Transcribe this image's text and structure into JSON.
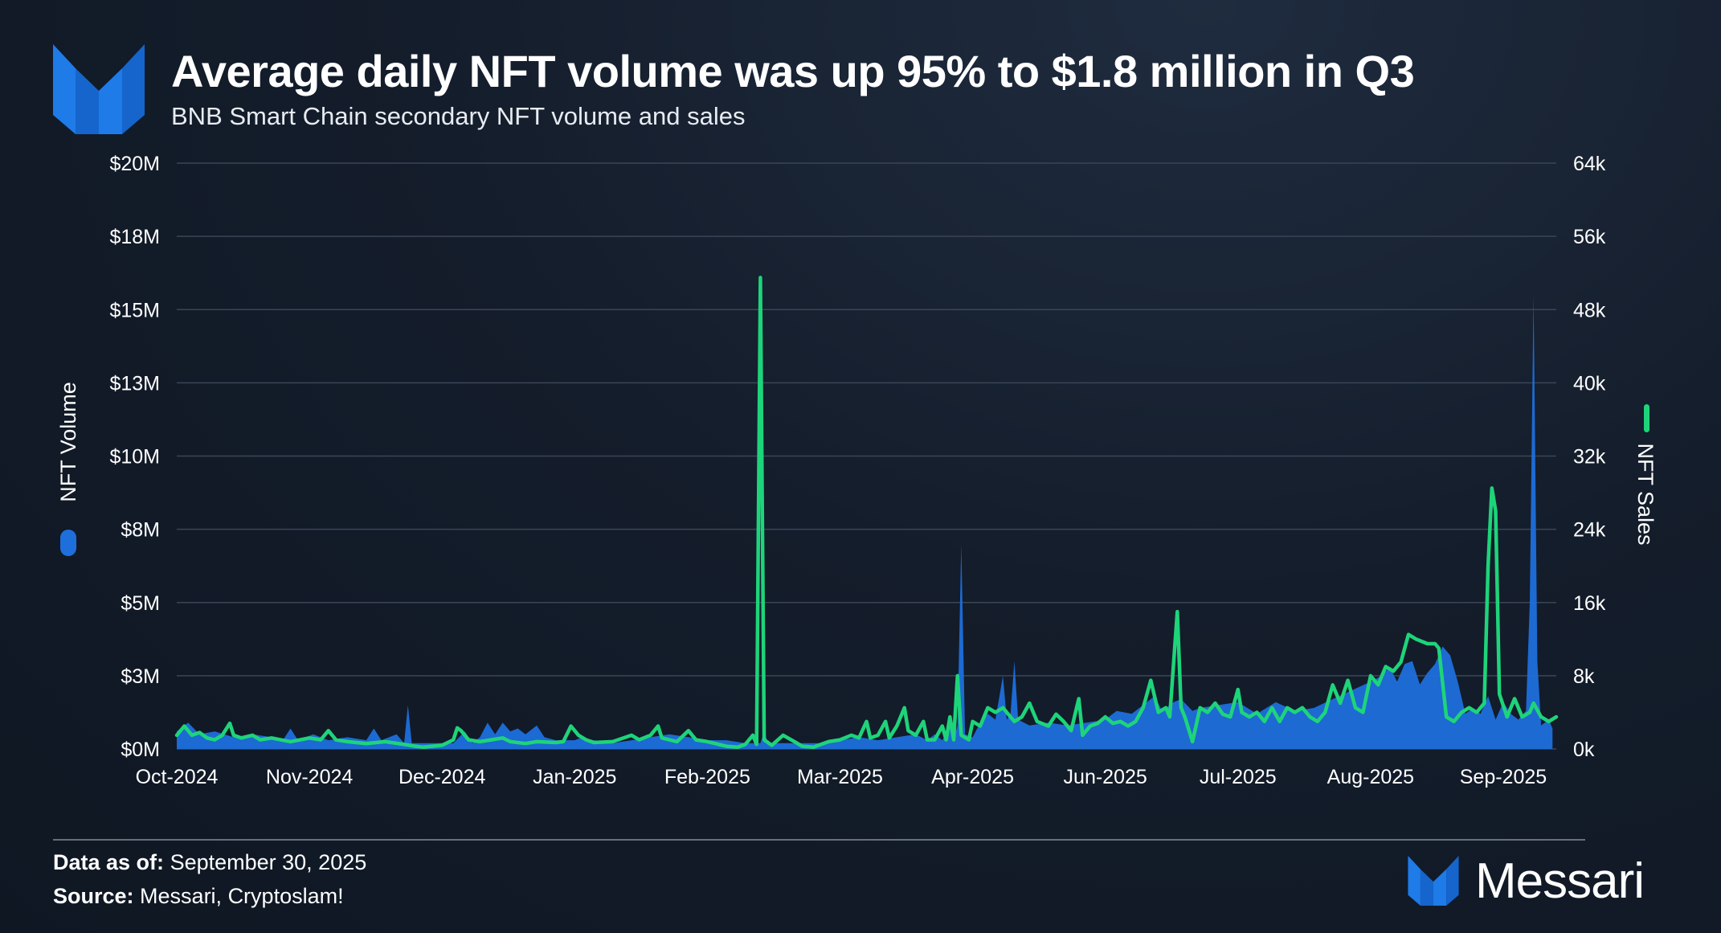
{
  "header": {
    "title": "Average daily NFT volume was up 95% to $1.8 million in Q3",
    "subtitle": "BNB Smart Chain secondary NFT volume and sales"
  },
  "footer": {
    "data_as_of_label": "Data as of:",
    "data_as_of_value": "September 30, 2025",
    "source_label": "Source:",
    "source_value": "Messari, Cryptoslam!",
    "brand": "Messari"
  },
  "colors": {
    "volume": "#1e6fdc",
    "sales": "#1ed47a",
    "grid": "#3a4556"
  },
  "chart_data": {
    "type": "area+line",
    "title": "Average daily NFT volume was up 95% to $1.8 million in Q3",
    "subtitle": "BNB Smart Chain secondary NFT volume and sales",
    "x_tick_labels": [
      "Oct-2024",
      "Nov-2024",
      "Dec-2024",
      "Jan-2025",
      "Feb-2025",
      "Mar-2025",
      "Apr-2025",
      "Jun-2025",
      "Jul-2025",
      "Aug-2025",
      "Sep-2025"
    ],
    "x_domain_days": [
      0,
      364
    ],
    "x_tick_days": [
      0,
      35,
      70,
      105,
      140,
      175,
      210,
      245,
      280,
      315,
      350
    ],
    "y_left": {
      "label": "NFT Volume",
      "range": [
        0,
        20
      ],
      "tick_values": [
        0,
        2.5,
        5,
        7.5,
        10,
        12.5,
        15,
        17.5,
        20
      ],
      "tick_labels": [
        "$0M",
        "$3M",
        "$5M",
        "$8M",
        "$10M",
        "$13M",
        "$15M",
        "$18M",
        "$20M"
      ]
    },
    "y_right": {
      "label": "NFT Sales",
      "range": [
        0,
        64
      ],
      "tick_values": [
        0,
        8,
        16,
        24,
        32,
        40,
        48,
        56,
        64
      ],
      "tick_labels": [
        "0k",
        "8k",
        "16k",
        "24k",
        "32k",
        "40k",
        "48k",
        "56k",
        "64k"
      ]
    },
    "series": [
      {
        "name": "NFT Volume",
        "unit": "$M",
        "axis": "left",
        "style": "area",
        "points": [
          [
            0,
            0.6
          ],
          [
            3,
            0.9
          ],
          [
            6,
            0.5
          ],
          [
            10,
            0.6
          ],
          [
            15,
            0.4
          ],
          [
            20,
            0.5
          ],
          [
            25,
            0.4
          ],
          [
            28,
            0.3
          ],
          [
            30,
            0.7
          ],
          [
            32,
            0.3
          ],
          [
            36,
            0.5
          ],
          [
            40,
            0.3
          ],
          [
            45,
            0.4
          ],
          [
            50,
            0.3
          ],
          [
            52,
            0.7
          ],
          [
            54,
            0.3
          ],
          [
            58,
            0.5
          ],
          [
            60,
            0.2
          ],
          [
            61,
            1.5
          ],
          [
            62,
            0.2
          ],
          [
            65,
            0.2
          ],
          [
            70,
            0.2
          ],
          [
            73,
            0.2
          ],
          [
            76,
            0.6
          ],
          [
            78,
            0.2
          ],
          [
            80,
            0.4
          ],
          [
            82,
            0.9
          ],
          [
            84,
            0.5
          ],
          [
            86,
            0.9
          ],
          [
            88,
            0.6
          ],
          [
            90,
            0.7
          ],
          [
            92,
            0.5
          ],
          [
            95,
            0.8
          ],
          [
            97,
            0.4
          ],
          [
            100,
            0.3
          ],
          [
            105,
            0.3
          ],
          [
            107,
            0.4
          ],
          [
            110,
            0.3
          ],
          [
            115,
            0.2
          ],
          [
            120,
            0.3
          ],
          [
            125,
            0.4
          ],
          [
            130,
            0.5
          ],
          [
            135,
            0.4
          ],
          [
            140,
            0.3
          ],
          [
            145,
            0.3
          ],
          [
            150,
            0.2
          ],
          [
            154,
            0.2
          ],
          [
            155,
            0.6
          ],
          [
            156,
            0.2
          ],
          [
            160,
            0.2
          ],
          [
            165,
            0.2
          ],
          [
            170,
            0.2
          ],
          [
            175,
            0.3
          ],
          [
            180,
            0.4
          ],
          [
            185,
            0.3
          ],
          [
            190,
            0.4
          ],
          [
            195,
            0.5
          ],
          [
            198,
            0.3
          ],
          [
            200,
            0.5
          ],
          [
            202,
            0.3
          ],
          [
            204,
            0.8
          ],
          [
            205,
            0.3
          ],
          [
            206,
            0.8
          ],
          [
            207,
            7.0
          ],
          [
            208,
            0.5
          ],
          [
            210,
            0.4
          ],
          [
            212,
            0.9
          ],
          [
            214,
            1.2
          ],
          [
            216,
            1.0
          ],
          [
            218,
            2.5
          ],
          [
            219,
            1.0
          ],
          [
            220,
            1.2
          ],
          [
            221,
            3.0
          ],
          [
            222,
            1.0
          ],
          [
            225,
            0.8
          ],
          [
            230,
            0.9
          ],
          [
            235,
            0.8
          ],
          [
            240,
            0.9
          ],
          [
            245,
            1.0
          ],
          [
            248,
            1.3
          ],
          [
            252,
            1.2
          ],
          [
            255,
            1.5
          ],
          [
            258,
            1.8
          ],
          [
            260,
            1.3
          ],
          [
            263,
            1.6
          ],
          [
            265,
            1.7
          ],
          [
            268,
            1.3
          ],
          [
            270,
            1.4
          ],
          [
            275,
            1.5
          ],
          [
            280,
            1.6
          ],
          [
            285,
            1.2
          ],
          [
            290,
            1.6
          ],
          [
            295,
            1.3
          ],
          [
            300,
            1.4
          ],
          [
            305,
            1.7
          ],
          [
            310,
            2.0
          ],
          [
            315,
            2.3
          ],
          [
            318,
            2.5
          ],
          [
            320,
            2.8
          ],
          [
            322,
            2.3
          ],
          [
            324,
            2.9
          ],
          [
            326,
            3.0
          ],
          [
            328,
            2.2
          ],
          [
            330,
            2.6
          ],
          [
            332,
            2.9
          ],
          [
            334,
            3.5
          ],
          [
            336,
            3.2
          ],
          [
            338,
            2.3
          ],
          [
            340,
            1.2
          ],
          [
            342,
            1.4
          ],
          [
            344,
            1.2
          ],
          [
            346,
            1.8
          ],
          [
            348,
            1.0
          ],
          [
            350,
            1.6
          ],
          [
            352,
            1.2
          ],
          [
            354,
            1.0
          ],
          [
            356,
            1.3
          ],
          [
            357,
            5.0
          ],
          [
            358,
            15.5
          ],
          [
            359,
            3.0
          ],
          [
            360,
            0.8
          ],
          [
            362,
            1.0
          ],
          [
            363,
            0.7
          ]
        ]
      },
      {
        "name": "NFT Sales",
        "unit": "k",
        "axis": "right",
        "style": "line",
        "points": [
          [
            0,
            1.5
          ],
          [
            2,
            2.5
          ],
          [
            4,
            1.5
          ],
          [
            6,
            1.8
          ],
          [
            8,
            1.2
          ],
          [
            10,
            1.0
          ],
          [
            12,
            1.5
          ],
          [
            14,
            2.8
          ],
          [
            15,
            1.5
          ],
          [
            17,
            1.2
          ],
          [
            20,
            1.5
          ],
          [
            22,
            1.0
          ],
          [
            25,
            1.2
          ],
          [
            30,
            0.8
          ],
          [
            35,
            1.2
          ],
          [
            38,
            1.0
          ],
          [
            40,
            2.0
          ],
          [
            42,
            1.0
          ],
          [
            45,
            0.8
          ],
          [
            50,
            0.6
          ],
          [
            55,
            0.8
          ],
          [
            60,
            0.5
          ],
          [
            63,
            0.3
          ],
          [
            65,
            0.2
          ],
          [
            70,
            0.4
          ],
          [
            73,
            1.0
          ],
          [
            74,
            2.3
          ],
          [
            75,
            2.0
          ],
          [
            77,
            1.0
          ],
          [
            80,
            0.8
          ],
          [
            83,
            1.0
          ],
          [
            86,
            1.2
          ],
          [
            88,
            0.8
          ],
          [
            92,
            0.6
          ],
          [
            95,
            0.8
          ],
          [
            100,
            0.7
          ],
          [
            102,
            0.8
          ],
          [
            104,
            2.5
          ],
          [
            106,
            1.5
          ],
          [
            108,
            1.0
          ],
          [
            110,
            0.7
          ],
          [
            115,
            0.8
          ],
          [
            120,
            1.5
          ],
          [
            122,
            1.0
          ],
          [
            125,
            1.5
          ],
          [
            127,
            2.5
          ],
          [
            128,
            1.2
          ],
          [
            132,
            0.8
          ],
          [
            135,
            2.0
          ],
          [
            137,
            1.0
          ],
          [
            140,
            0.8
          ],
          [
            143,
            0.5
          ],
          [
            145,
            0.3
          ],
          [
            148,
            0.2
          ],
          [
            150,
            0.5
          ],
          [
            152,
            1.5
          ],
          [
            153,
            0.5
          ],
          [
            154,
            51.5
          ],
          [
            155,
            1.0
          ],
          [
            157,
            0.4
          ],
          [
            160,
            1.5
          ],
          [
            163,
            0.8
          ],
          [
            165,
            0.3
          ],
          [
            168,
            0.2
          ],
          [
            170,
            0.5
          ],
          [
            172,
            0.8
          ],
          [
            175,
            1.0
          ],
          [
            178,
            1.5
          ],
          [
            180,
            1.2
          ],
          [
            182,
            3.0
          ],
          [
            183,
            1.2
          ],
          [
            185,
            1.5
          ],
          [
            187,
            3.0
          ],
          [
            188,
            1.2
          ],
          [
            190,
            2.5
          ],
          [
            192,
            4.5
          ],
          [
            193,
            2.0
          ],
          [
            195,
            1.5
          ],
          [
            197,
            3.0
          ],
          [
            198,
            1.0
          ],
          [
            200,
            1.0
          ],
          [
            202,
            2.5
          ],
          [
            203,
            1.0
          ],
          [
            204,
            3.5
          ],
          [
            205,
            1.0
          ],
          [
            206,
            8.0
          ],
          [
            207,
            1.5
          ],
          [
            209,
            1.0
          ],
          [
            210,
            3.0
          ],
          [
            212,
            2.5
          ],
          [
            214,
            4.5
          ],
          [
            216,
            4.0
          ],
          [
            218,
            4.5
          ],
          [
            220,
            3.5
          ],
          [
            221,
            3.0
          ],
          [
            223,
            3.5
          ],
          [
            225,
            5.0
          ],
          [
            227,
            3.0
          ],
          [
            230,
            2.5
          ],
          [
            232,
            3.8
          ],
          [
            234,
            3.0
          ],
          [
            236,
            2.0
          ],
          [
            238,
            5.5
          ],
          [
            239,
            1.5
          ],
          [
            241,
            2.5
          ],
          [
            243,
            2.8
          ],
          [
            245,
            3.5
          ],
          [
            247,
            2.8
          ],
          [
            249,
            3.0
          ],
          [
            251,
            2.5
          ],
          [
            253,
            3.0
          ],
          [
            255,
            4.5
          ],
          [
            257,
            7.5
          ],
          [
            259,
            4.0
          ],
          [
            261,
            4.5
          ],
          [
            262,
            3.5
          ],
          [
            264,
            15.0
          ],
          [
            265,
            4.5
          ],
          [
            266,
            3.5
          ],
          [
            268,
            0.8
          ],
          [
            270,
            4.5
          ],
          [
            272,
            4.0
          ],
          [
            274,
            5.0
          ],
          [
            276,
            3.8
          ],
          [
            278,
            3.5
          ],
          [
            280,
            6.5
          ],
          [
            281,
            4.0
          ],
          [
            283,
            3.5
          ],
          [
            285,
            4.0
          ],
          [
            287,
            3.0
          ],
          [
            289,
            4.5
          ],
          [
            291,
            3.0
          ],
          [
            293,
            4.5
          ],
          [
            295,
            4.0
          ],
          [
            297,
            4.5
          ],
          [
            299,
            3.5
          ],
          [
            301,
            3.0
          ],
          [
            303,
            4.0
          ],
          [
            305,
            7.0
          ],
          [
            307,
            5.0
          ],
          [
            309,
            7.5
          ],
          [
            311,
            4.5
          ],
          [
            313,
            4.0
          ],
          [
            315,
            8.0
          ],
          [
            317,
            7.0
          ],
          [
            319,
            9.0
          ],
          [
            321,
            8.5
          ],
          [
            323,
            9.5
          ],
          [
            325,
            12.5
          ],
          [
            327,
            12.0
          ],
          [
            330,
            11.5
          ],
          [
            332,
            11.5
          ],
          [
            333,
            11.0
          ],
          [
            335,
            3.5
          ],
          [
            337,
            3.0
          ],
          [
            339,
            4.0
          ],
          [
            341,
            4.5
          ],
          [
            343,
            4.0
          ],
          [
            345,
            5.0
          ],
          [
            346,
            20.0
          ],
          [
            347,
            28.5
          ],
          [
            348,
            26.0
          ],
          [
            349,
            6.0
          ],
          [
            351,
            3.5
          ],
          [
            353,
            5.5
          ],
          [
            355,
            3.5
          ],
          [
            357,
            4.0
          ],
          [
            358,
            5.0
          ],
          [
            360,
            3.5
          ],
          [
            362,
            3.0
          ],
          [
            364,
            3.5
          ]
        ]
      }
    ]
  }
}
